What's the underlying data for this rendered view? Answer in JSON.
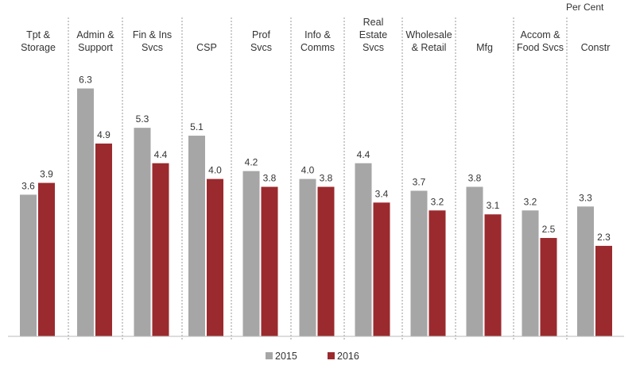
{
  "chart_data": {
    "type": "bar",
    "title": "",
    "unit_label": "Per Cent",
    "xlabel": "",
    "ylabel": "",
    "ylim": [
      0,
      6.5
    ],
    "grid": false,
    "legend_position": "bottom-center",
    "categories": [
      [
        "Tpt &",
        "Storage"
      ],
      [
        "Admin &",
        "Support"
      ],
      [
        "Fin & Ins",
        "Svcs"
      ],
      [
        "CSP"
      ],
      [
        "Prof",
        "Svcs"
      ],
      [
        "Info &",
        "Comms"
      ],
      [
        "Real",
        "Estate",
        "Svcs"
      ],
      [
        "Wholesale",
        "& Retail"
      ],
      [
        "Mfg"
      ],
      [
        "Accom &",
        "Food Svcs"
      ],
      [
        "Constr"
      ]
    ],
    "series": [
      {
        "name": "2015",
        "color": "#a6a6a6",
        "values": [
          3.6,
          6.3,
          5.3,
          5.1,
          4.2,
          4.0,
          4.4,
          3.7,
          3.8,
          3.2,
          3.3
        ]
      },
      {
        "name": "2016",
        "color": "#9b2a2e",
        "values": [
          3.9,
          4.9,
          4.4,
          4.0,
          3.8,
          3.8,
          3.4,
          3.2,
          3.1,
          2.5,
          2.3
        ]
      }
    ]
  }
}
